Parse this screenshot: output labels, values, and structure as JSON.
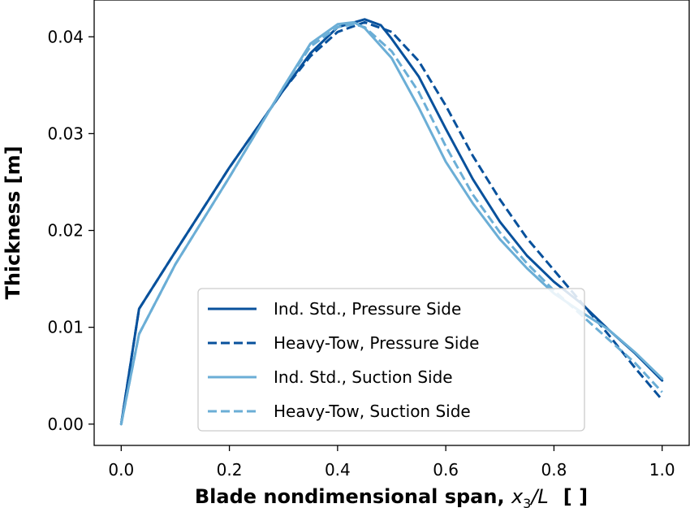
{
  "chart_data": {
    "type": "line",
    "xlabel": {
      "main": "Blade nondimensional span, ",
      "var": "x",
      "sub": "3",
      "tail": "/L",
      "unit": "[ ]"
    },
    "ylabel": "Thickness [m]",
    "xlim": [
      -0.05,
      1.05
    ],
    "ylim": [
      -0.0022,
      0.0438
    ],
    "xticks": [
      "0.0",
      "0.2",
      "0.4",
      "0.6",
      "0.8",
      "1.0"
    ],
    "yticks": [
      "0.00",
      "0.01",
      "0.02",
      "0.03",
      "0.04"
    ],
    "grid": false,
    "legend_position": "lower-center",
    "series": [
      {
        "name": "Ind. Std., Pressure Side",
        "color": "#08519c",
        "dash": "solid",
        "x": [
          0.0,
          0.033,
          0.1,
          0.2,
          0.3,
          0.35,
          0.4,
          0.45,
          0.48,
          0.5,
          0.55,
          0.6,
          0.65,
          0.7,
          0.75,
          0.8,
          0.85,
          0.9,
          0.95,
          1.0
        ],
        "y": [
          0.0,
          0.0119,
          0.0178,
          0.0265,
          0.0345,
          0.0383,
          0.041,
          0.0418,
          0.0412,
          0.0398,
          0.0359,
          0.0305,
          0.0253,
          0.0209,
          0.0174,
          0.0147,
          0.0125,
          0.0098,
          0.0073,
          0.0045
        ]
      },
      {
        "name": "Heavy-Tow, Pressure Side",
        "color": "#08519c",
        "dash": "dashed",
        "x": [
          0.0,
          0.033,
          0.1,
          0.2,
          0.3,
          0.35,
          0.4,
          0.45,
          0.5,
          0.55,
          0.6,
          0.65,
          0.7,
          0.75,
          0.8,
          0.85,
          0.9,
          0.95,
          1.0
        ],
        "y": [
          0.0,
          0.0119,
          0.0178,
          0.0265,
          0.0345,
          0.038,
          0.0405,
          0.0415,
          0.0405,
          0.0375,
          0.0329,
          0.0277,
          0.0232,
          0.0192,
          0.0159,
          0.0126,
          0.0093,
          0.0058,
          0.0025
        ]
      },
      {
        "name": "Ind. Std., Suction Side",
        "color": "#6baed6",
        "dash": "solid",
        "x": [
          0.0,
          0.033,
          0.1,
          0.2,
          0.3,
          0.35,
          0.4,
          0.43,
          0.45,
          0.5,
          0.55,
          0.6,
          0.65,
          0.7,
          0.75,
          0.8,
          0.85,
          0.9,
          0.95,
          1.0
        ],
        "y": [
          0.0,
          0.0093,
          0.0165,
          0.0255,
          0.0348,
          0.0393,
          0.0413,
          0.0415,
          0.0409,
          0.0378,
          0.0327,
          0.0271,
          0.0228,
          0.0191,
          0.0161,
          0.0135,
          0.0116,
          0.0098,
          0.0074,
          0.0047
        ]
      },
      {
        "name": "Heavy-Tow, Suction Side",
        "color": "#6baed6",
        "dash": "dashed",
        "x": [
          0.0,
          0.033,
          0.1,
          0.2,
          0.3,
          0.35,
          0.4,
          0.43,
          0.45,
          0.5,
          0.55,
          0.6,
          0.65,
          0.7,
          0.75,
          0.8,
          0.85,
          0.9,
          0.95,
          1.0
        ],
        "y": [
          0.0,
          0.0093,
          0.0165,
          0.0255,
          0.0348,
          0.039,
          0.041,
          0.0413,
          0.041,
          0.0385,
          0.0343,
          0.0287,
          0.0237,
          0.0198,
          0.0166,
          0.0138,
          0.0113,
          0.0088,
          0.0063,
          0.0033
        ]
      }
    ]
  }
}
